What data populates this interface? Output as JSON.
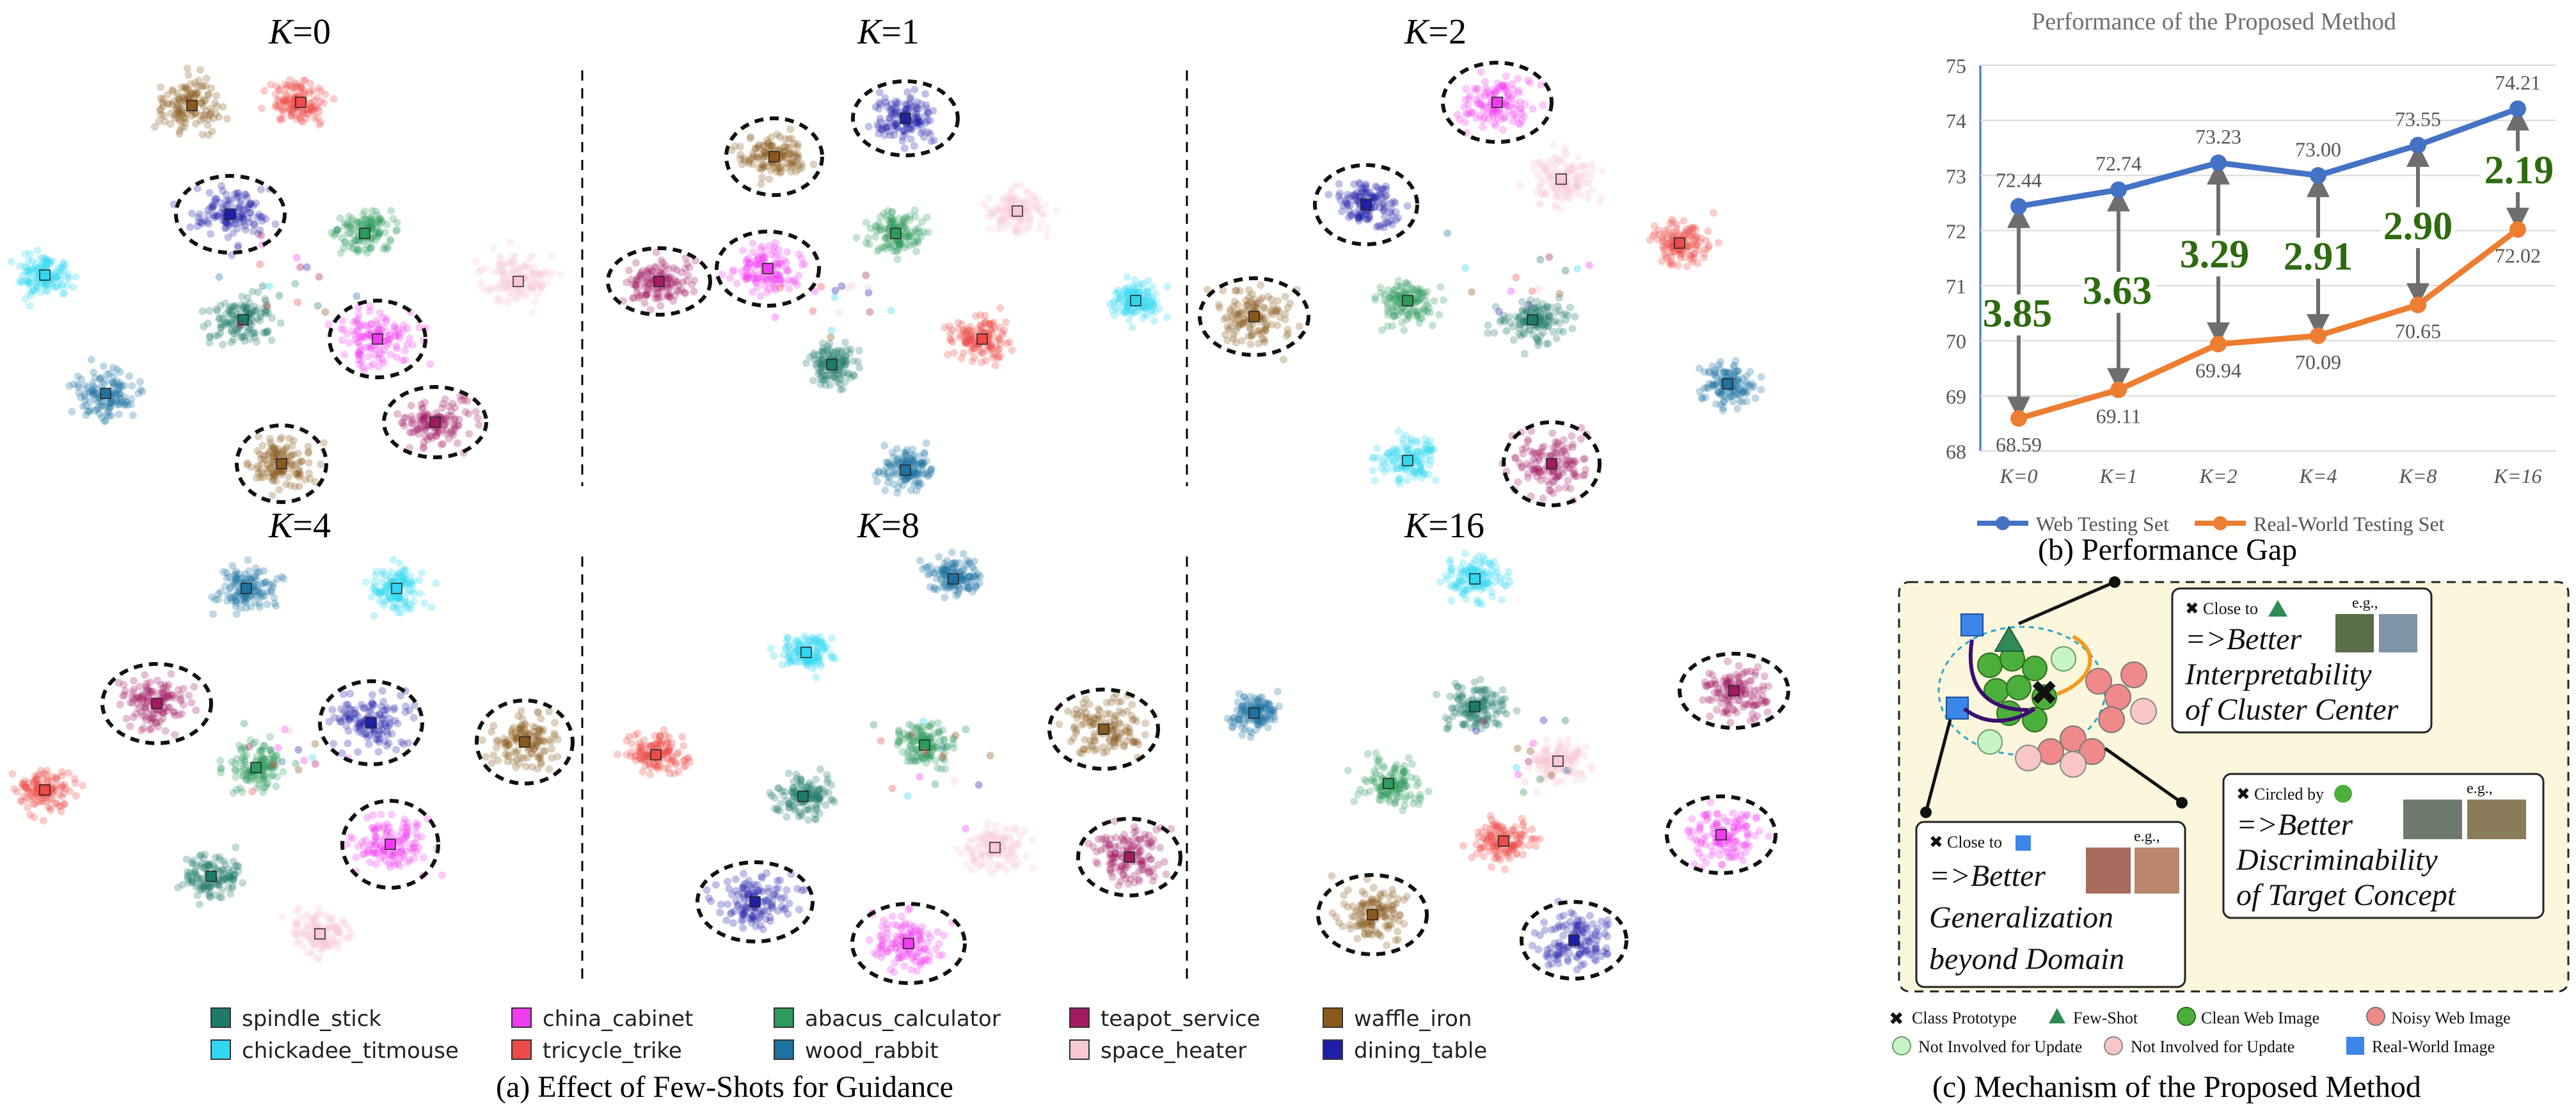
{
  "panel_a": {
    "caption": "(a)  Effect of Few-Shots for Guidance",
    "k_values": [
      "0",
      "1",
      "2",
      "4",
      "8",
      "16"
    ],
    "legend": [
      {
        "label": "spindle_stick",
        "color": "#1f7a6a"
      },
      {
        "label": "chickadee_titmouse",
        "color": "#33d6f0"
      },
      {
        "label": "china_cabinet",
        "color": "#f03cf0"
      },
      {
        "label": "tricycle_trike",
        "color": "#ee4b48"
      },
      {
        "label": "abacus_calculator",
        "color": "#2e9a5c"
      },
      {
        "label": "wood_rabbit",
        "color": "#1e72a0"
      },
      {
        "label": "teapot_service",
        "color": "#a31a63"
      },
      {
        "label": "space_heater",
        "color": "#f7c9d4"
      },
      {
        "label": "waffle_iron",
        "color": "#8a5a1c"
      },
      {
        "label": "dining_table",
        "color": "#1f1fa8"
      }
    ]
  },
  "chart_data": {
    "type": "line",
    "title": "Performance of the Proposed Method",
    "categories": [
      "K=0",
      "K=1",
      "K=2",
      "K=4",
      "K=8",
      "K=16"
    ],
    "ylim": [
      68,
      75
    ],
    "yticks": [
      "68",
      "69",
      "70",
      "71",
      "72",
      "73",
      "74",
      "75"
    ],
    "grid": true,
    "legend_position": "bottom",
    "series": [
      {
        "name": "Web Testing Set",
        "color": "#4472c4",
        "values": [
          72.44,
          72.74,
          73.23,
          73.0,
          73.55,
          74.21
        ],
        "labels": [
          "72.44",
          "72.74",
          "73.23",
          "73.00",
          "73.55",
          "74.21"
        ]
      },
      {
        "name": "Real-World Testing Set",
        "color": "#ed7d31",
        "values": [
          68.59,
          69.11,
          69.94,
          70.09,
          70.65,
          72.02
        ],
        "labels": [
          "68.59",
          "69.11",
          "69.94",
          "70.09",
          "70.65",
          "72.02"
        ]
      }
    ],
    "gaps": [
      "3.85",
      "3.63",
      "3.29",
      "2.91",
      "2.90",
      "2.19"
    ],
    "gap_color": "#2e6b0f"
  },
  "panel_b": {
    "caption": "(b)  Performance Gap"
  },
  "panel_c": {
    "caption": "(c)  Mechanism of the Proposed Method",
    "box1": {
      "pre": "Close to",
      "eg": "e.g.,",
      "line1": "=>Better",
      "line2": "Interpretability",
      "line3": "of Cluster Center"
    },
    "box2": {
      "pre": "Circled by",
      "eg": "e.g.,",
      "line1": "=>Better",
      "line2": "Discriminability",
      "line3": "of Target Concept"
    },
    "box3": {
      "pre": "Close to",
      "eg": "e.g.,",
      "line1": "=>Better",
      "line2": "Generalization",
      "line3": "beyond Domain"
    },
    "legend": [
      "Class Prototype",
      "Few-Shot",
      "Clean Web Image",
      "Noisy Web Image",
      "Not Involved for Update",
      "Not Involved for Update",
      "Real-World Image"
    ],
    "colors": {
      "bg": "#fbf6dc",
      "green": "#4caf3c",
      "pink": "#f08a8a",
      "lightgreen": "#c8f5c8",
      "lightpink": "#f8c6c6",
      "blue": "#3b86e8",
      "fewshot": "#2e8b57",
      "arrow": "#3a0f6e",
      "orange": "#f39a1e"
    }
  }
}
